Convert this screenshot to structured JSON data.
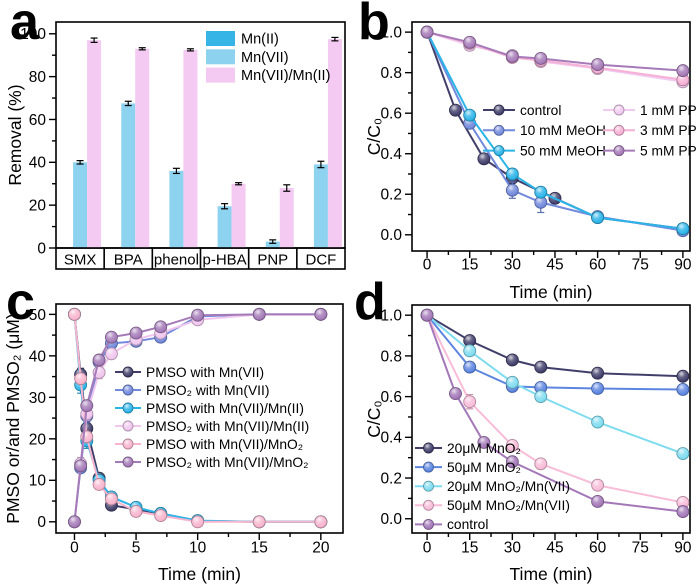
{
  "figure": {
    "background": "#ffffff",
    "text_color": "#000000",
    "frame_color": "#000000"
  },
  "chart_data": [
    {
      "panel_label": "a",
      "type": "bar",
      "ylabel": "Removal (%)",
      "ylim": [
        0,
        105.5
      ],
      "yticks": [
        0,
        20,
        40,
        60,
        80,
        100
      ],
      "categories": [
        "SMX",
        "BPA",
        "phenol",
        "p-HBA",
        "PNP",
        "DCF"
      ],
      "series": [
        {
          "name": "Mn(II)",
          "color": "#36b4e5",
          "values": [
            0,
            0,
            0,
            0,
            0,
            0
          ],
          "err": [
            0,
            0,
            0,
            0,
            0,
            0
          ]
        },
        {
          "name": "Mn(VII)",
          "color": "#8dd3ef",
          "values": [
            40,
            67.5,
            36,
            19.5,
            3,
            39
          ],
          "err": [
            0.8,
            1.0,
            1.2,
            1.2,
            0.8,
            1.5
          ]
        },
        {
          "name": "Mn(VII)/Mn(II)",
          "color": "#f4c9f2",
          "values": [
            97,
            93,
            92.5,
            30,
            28,
            97.5
          ],
          "err": [
            1.0,
            0.5,
            0.5,
            0.5,
            1.5,
            0.8
          ]
        }
      ],
      "legend_position": "top-right-inside"
    },
    {
      "panel_label": "b",
      "type": "line",
      "xlabel": "Time (min)",
      "ylabel": "C/C₀",
      "xlim": [
        -5.3,
        92.5
      ],
      "ylim": [
        -0.08,
        1.05
      ],
      "xticks": [
        0,
        15,
        30,
        45,
        60,
        75,
        90
      ],
      "yticks": [
        0.0,
        0.2,
        0.4,
        0.6,
        0.8,
        1.0
      ],
      "series": [
        {
          "name": "control",
          "color": "#413f6a",
          "x": [
            0,
            10,
            20,
            30,
            45,
            60,
            90
          ],
          "y": [
            1.0,
            0.615,
            0.375,
            0.28,
            0.18,
            0.085,
            0.03
          ],
          "err": [
            0,
            0.012,
            0.012,
            0.015,
            0.01,
            0.008,
            0.008
          ]
        },
        {
          "name": "10 mM MeOH",
          "color": "#7289dc",
          "x": [
            0,
            15,
            30,
            40,
            60,
            90
          ],
          "y": [
            1.0,
            0.55,
            0.22,
            0.16,
            0.09,
            0.02
          ],
          "err": [
            0,
            0.02,
            0.04,
            0.05,
            0.012,
            0.015
          ]
        },
        {
          "name": "50 mM MeOH",
          "color": "#2cb4e8",
          "x": [
            0,
            15,
            30,
            40,
            60,
            90
          ],
          "y": [
            1.0,
            0.59,
            0.3,
            0.21,
            0.085,
            0.03
          ],
          "err": [
            0,
            0.02,
            0.018,
            0.02,
            0.012,
            0.015
          ]
        },
        {
          "name": "1 mM PP",
          "color": "#f0caf0",
          "x": [
            0,
            15,
            30,
            40,
            60,
            90
          ],
          "y": [
            1.0,
            0.935,
            0.885,
            0.855,
            0.82,
            0.755
          ],
          "err": [
            0,
            0.025,
            0.02,
            0.02,
            0.015,
            0.02
          ]
        },
        {
          "name": "3 mM PP",
          "color": "#f6b0d5",
          "x": [
            0,
            15,
            30,
            40,
            60,
            90
          ],
          "y": [
            1.0,
            0.945,
            0.875,
            0.86,
            0.825,
            0.765
          ],
          "err": [
            0,
            0.02,
            0.015,
            0.015,
            0.012,
            0.015
          ]
        },
        {
          "name": "5 mM PP",
          "color": "#a67ab8",
          "x": [
            0,
            15,
            30,
            40,
            60,
            90
          ],
          "y": [
            1.0,
            0.95,
            0.88,
            0.87,
            0.84,
            0.81
          ],
          "err": [
            0,
            0.015,
            0.015,
            0.015,
            0.012,
            0.012
          ]
        }
      ],
      "legend_position": "center-inside-two-columns"
    },
    {
      "panel_label": "c",
      "type": "line",
      "xlabel": "Time (min)",
      "ylabel": "PMSO or/and PMSO₂ (μM)",
      "xlim": [
        -1.5,
        21.8
      ],
      "ylim": [
        -2.7,
        52.5
      ],
      "xticks": [
        0,
        5,
        10,
        15,
        20
      ],
      "yticks": [
        0,
        10,
        20,
        30,
        40,
        50
      ],
      "series": [
        {
          "name": "PMSO with Mn(VII)",
          "color": "#413f6a",
          "x": [
            0,
            0.5,
            1,
            2,
            3,
            5,
            7,
            10,
            15,
            20
          ],
          "y": [
            50,
            35.5,
            22.5,
            10.5,
            4,
            3,
            2,
            0.2,
            0,
            0
          ],
          "err": [
            0,
            1.5,
            1.2,
            0.8,
            0.5,
            0.4,
            0.3,
            0,
            0,
            0
          ]
        },
        {
          "name": "PMSO₂ with Mn(VII)",
          "color": "#7289dc",
          "x": [
            0,
            0.5,
            1,
            2,
            3,
            5,
            7,
            10,
            15,
            20
          ],
          "y": [
            0,
            13,
            25.5,
            38.5,
            43,
            43.5,
            44.5,
            49.5,
            50,
            50
          ],
          "err": [
            0,
            1.2,
            1.5,
            1.5,
            2.0,
            1.0,
            0.8,
            0.5,
            0,
            0
          ]
        },
        {
          "name": "PMSO with Mn(VII)/Mn(II)",
          "color": "#2cb4e8",
          "x": [
            0,
            0.5,
            1,
            2,
            3,
            5,
            7,
            10,
            15,
            20
          ],
          "y": [
            50,
            33,
            19.5,
            10,
            6,
            3.5,
            2,
            0.3,
            0,
            0
          ],
          "err": [
            0,
            2.0,
            1.8,
            1.0,
            0.8,
            0.5,
            0.4,
            0,
            0,
            0
          ]
        },
        {
          "name": "PMSO₂ with Mn(VII)/Mn(II)",
          "color": "#f0c6ee",
          "x": [
            0,
            0.5,
            1,
            2,
            3,
            5,
            7,
            10,
            15,
            20
          ],
          "y": [
            0,
            14,
            26,
            36,
            40.5,
            44,
            45.5,
            48.7,
            50,
            50
          ],
          "err": [
            0,
            1.5,
            1.5,
            1.5,
            1.2,
            0.8,
            0.6,
            0.4,
            0,
            0
          ]
        },
        {
          "name": "PMSO with Mn(VII)/MnO₂",
          "color": "#f7b5cd",
          "x": [
            0,
            0.5,
            1,
            2,
            3,
            5,
            7,
            10,
            15,
            20
          ],
          "y": [
            50,
            34.5,
            20.5,
            9,
            5.5,
            2.5,
            1.5,
            0,
            0,
            0
          ],
          "err": [
            0,
            1.2,
            1.0,
            0.8,
            0.5,
            0.4,
            0.3,
            0,
            0,
            0
          ]
        },
        {
          "name": "PMSO₂ with Mn(VII)/MnO₂",
          "color": "#a47ab8",
          "x": [
            0,
            0.5,
            1,
            2,
            3,
            5,
            7,
            10,
            15,
            20
          ],
          "y": [
            0,
            13.5,
            28,
            39,
            44.5,
            45.5,
            47,
            49.8,
            50,
            50
          ],
          "err": [
            0,
            1.2,
            1.0,
            0.8,
            0.6,
            0.5,
            0.4,
            0.3,
            0,
            0
          ]
        }
      ],
      "legend_position": "middle-right-inside"
    },
    {
      "panel_label": "d",
      "type": "line",
      "xlabel": "Time (min)",
      "ylabel": "C/C₀",
      "xlim": [
        -5.3,
        92.5
      ],
      "ylim": [
        -0.07,
        1.05
      ],
      "xticks": [
        0,
        15,
        30,
        45,
        60,
        75,
        90
      ],
      "yticks": [
        0.0,
        0.2,
        0.4,
        0.6,
        0.8,
        1.0
      ],
      "series": [
        {
          "name": "20μM MnO₂",
          "color": "#413f6a",
          "x": [
            0,
            15,
            30,
            40,
            60,
            90
          ],
          "y": [
            1.0,
            0.875,
            0.78,
            0.745,
            0.715,
            0.7
          ],
          "err": [
            0,
            0.012,
            0.01,
            0.01,
            0.008,
            0.008
          ]
        },
        {
          "name": "50μM MnO₂",
          "color": "#5c85e0",
          "x": [
            0,
            15,
            30,
            40,
            60,
            90
          ],
          "y": [
            1.0,
            0.745,
            0.65,
            0.645,
            0.64,
            0.635
          ],
          "err": [
            0,
            0.012,
            0.01,
            0.008,
            0.008,
            0.008
          ]
        },
        {
          "name": "20μM MnO₂/Mn(VII)",
          "color": "#7fdcf0",
          "x": [
            0,
            15,
            30,
            40,
            60,
            90
          ],
          "y": [
            1.0,
            0.825,
            0.67,
            0.6,
            0.475,
            0.32
          ],
          "err": [
            0,
            0.015,
            0.012,
            0.01,
            0.01,
            0.01
          ]
        },
        {
          "name": "50μM MnO₂/Mn(VII)",
          "color": "#f8bcd8",
          "x": [
            0,
            15,
            30,
            40,
            60,
            90
          ],
          "y": [
            1.0,
            0.575,
            0.36,
            0.27,
            0.165,
            0.08
          ],
          "err": [
            0,
            0.035,
            0.015,
            0.012,
            0.01,
            0.008
          ]
        },
        {
          "name": "control",
          "color": "#a377b8",
          "x": [
            0,
            10,
            20,
            30,
            60,
            90
          ],
          "y": [
            1.0,
            0.615,
            0.375,
            0.28,
            0.085,
            0.035
          ],
          "err": [
            0,
            0.01,
            0.01,
            0.01,
            0.008,
            0.008
          ]
        }
      ],
      "legend_position": "bottom-left-inside"
    }
  ]
}
